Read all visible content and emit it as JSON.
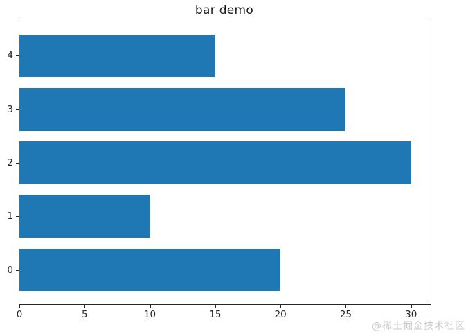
{
  "chart_data": {
    "type": "bar",
    "orientation": "horizontal",
    "title": "bar demo",
    "categories": [
      0,
      1,
      2,
      3,
      4
    ],
    "values": [
      20,
      10,
      30,
      25,
      15
    ],
    "x_ticks": [
      "0",
      "5",
      "10",
      "15",
      "20",
      "25",
      "30"
    ],
    "x_tick_values": [
      0,
      5,
      10,
      15,
      20,
      25,
      30
    ],
    "y_ticks": [
      "0",
      "1",
      "2",
      "3",
      "4"
    ],
    "y_tick_values": [
      0,
      1,
      2,
      3,
      4
    ],
    "xlabel": "",
    "ylabel": "",
    "xlim": [
      0,
      31.5
    ],
    "ylim": [
      -0.64,
      4.64
    ],
    "bar_height": 0.8,
    "bar_color": "#1f77b4",
    "grid": false,
    "legend": null
  },
  "watermark": {
    "text": "@稀土掘金技术社区",
    "color": "#c9c9c9"
  }
}
